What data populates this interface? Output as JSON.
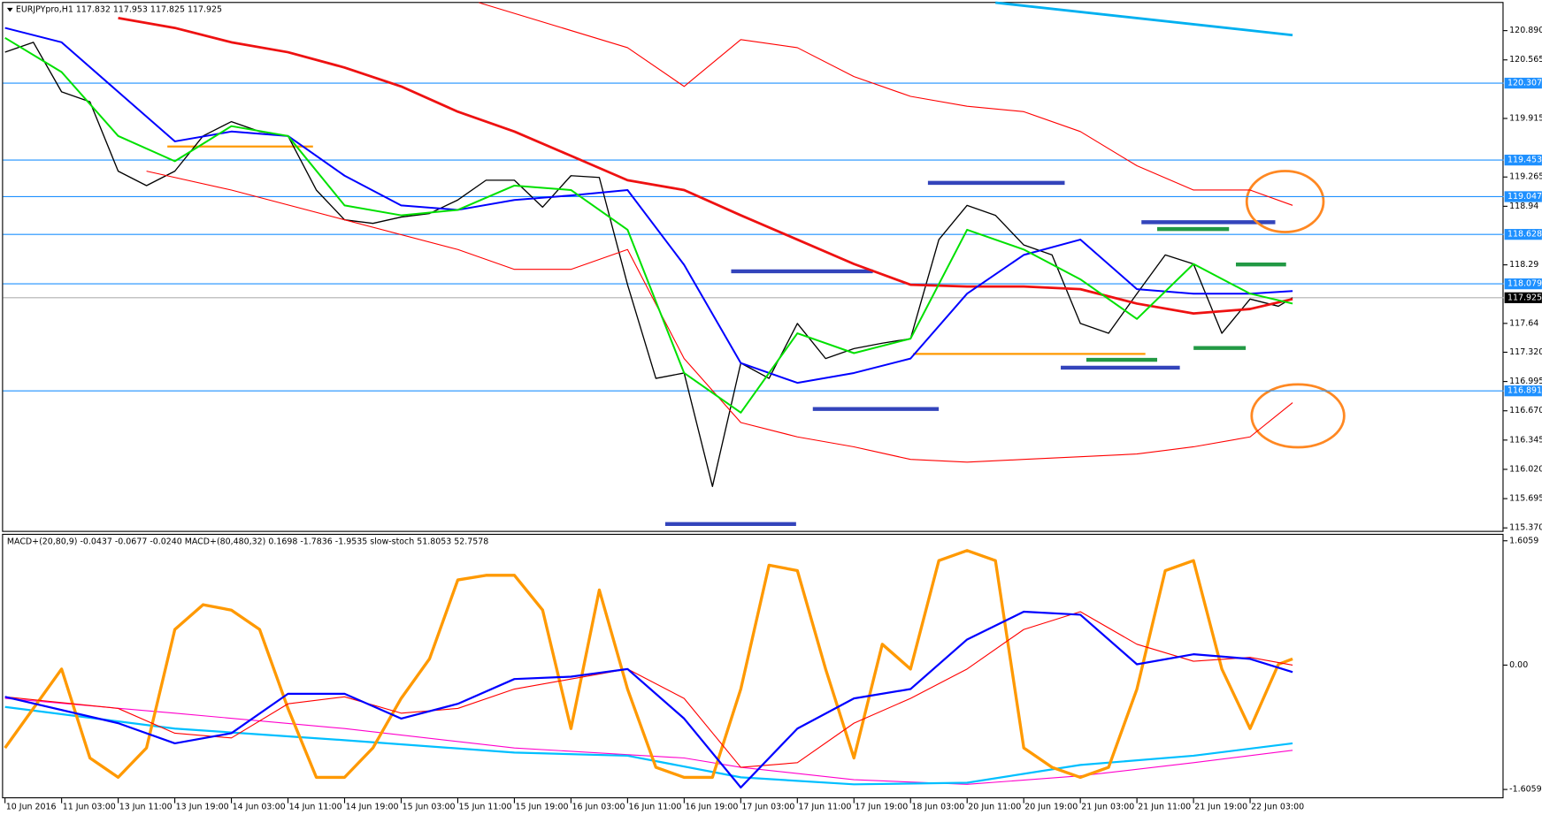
{
  "chart_data": [
    {
      "type": "line",
      "header": "EURJPYpro,H1 117.832 117.953 117.825 117.925",
      "ylim": [
        115.337,
        121.197
      ],
      "yticks": [
        {
          "value": 120.89,
          "label": "120.890"
        },
        120.565,
        119.915,
        119.265,
        118.94,
        118.29,
        117.64,
        {
          "value": 117.32,
          "label": "117.320"
        },
        116.995,
        {
          "value": 116.67,
          "label": "116.670"
        },
        116.345,
        {
          "value": 116.02,
          "label": "116.020"
        },
        115.695,
        {
          "value": 115.37,
          "label": "115.370"
        }
      ],
      "xticks": [
        {
          "value": 0,
          "label": "10 Jun 2016"
        },
        {
          "value": 8,
          "label": "11 Jun 03:00"
        },
        {
          "value": 16,
          "label": "13 Jun 11:00"
        },
        {
          "value": 24,
          "label": "13 Jun 19:00"
        },
        {
          "value": 32,
          "label": "14 Jun 03:00"
        },
        {
          "value": 40,
          "label": "14 Jun 11:00"
        },
        {
          "value": 48,
          "label": "14 Jun 19:00"
        },
        {
          "value": 56,
          "label": "15 Jun 03:00"
        },
        {
          "value": 64,
          "label": "15 Jun 11:00"
        },
        {
          "value": 72,
          "label": "15 Jun 19:00"
        },
        {
          "value": 80,
          "label": "16 Jun 03:00"
        },
        {
          "value": 88,
          "label": "16 Jun 11:00"
        },
        {
          "value": 96,
          "label": "16 Jun 19:00"
        },
        {
          "value": 104,
          "label": "17 Jun 03:00"
        },
        {
          "value": 112,
          "label": "17 Jun 11:00"
        },
        {
          "value": 120,
          "label": "17 Jun 19:00"
        },
        {
          "value": 128,
          "label": "18 Jun 03:00"
        },
        {
          "value": 136,
          "label": "20 Jun 11:00"
        },
        {
          "value": 144,
          "label": "20 Jun 19:00"
        },
        {
          "value": 152,
          "label": "21 Jun 03:00"
        },
        {
          "value": 160,
          "label": "21 Jun 11:00"
        },
        {
          "value": 168,
          "label": "21 Jun 19:00"
        },
        {
          "value": 176,
          "label": "22 Jun 03:00"
        }
      ],
      "hlines": [
        120.307,
        119.453,
        119.047,
        118.628,
        118.079,
        116.891
      ],
      "hline_color": "#1e90ff",
      "last_price": 117.925,
      "series": [
        {
          "color": "#000000",
          "width": 1.2,
          "x": [
            0,
            4,
            8,
            12,
            16,
            20,
            24,
            28,
            32,
            36,
            40,
            44,
            48,
            52,
            56,
            60,
            64,
            68,
            72,
            76,
            80,
            84,
            88,
            92,
            96,
            100,
            104,
            108,
            112,
            116,
            120,
            124,
            128,
            132,
            136,
            140,
            144,
            148,
            152,
            156,
            160,
            164,
            168,
            172,
            176,
            180,
            182
          ],
          "values": [
            120.65,
            120.76,
            120.21,
            120.1,
            119.33,
            119.17,
            119.33,
            119.72,
            119.88,
            119.77,
            119.72,
            119.12,
            118.79,
            118.75,
            118.82,
            118.86,
            119.01,
            119.23,
            119.23,
            118.93,
            119.28,
            119.26,
            118.07,
            117.03,
            117.09,
            115.83,
            117.2,
            117.03,
            117.64,
            117.25,
            117.36,
            117.42,
            117.47,
            118.57,
            118.95,
            118.84,
            118.51,
            118.4,
            117.64,
            117.53,
            117.97,
            118.4,
            118.3,
            117.53,
            117.91,
            117.83,
            117.925
          ]
        },
        {
          "color": "#ff0000",
          "width": 1,
          "x": [
            67,
            88,
            96,
            104,
            112,
            120,
            128,
            136,
            144,
            152,
            160,
            168,
            176,
            182
          ],
          "values": [
            121.2,
            120.7,
            120.27,
            120.79,
            120.7,
            120.38,
            120.16,
            120.05,
            119.99,
            119.77,
            119.39,
            119.12,
            119.12,
            118.95
          ]
        },
        {
          "color": "#ff0000",
          "width": 1,
          "x": [
            20,
            32,
            48,
            64,
            72,
            80,
            88,
            96,
            104,
            112,
            120,
            128,
            136,
            144,
            152,
            160,
            168,
            176,
            182
          ],
          "values": [
            119.33,
            119.12,
            118.79,
            118.46,
            118.24,
            118.24,
            118.46,
            117.25,
            116.54,
            116.38,
            116.27,
            116.13,
            116.1,
            116.13,
            116.16,
            116.19,
            116.27,
            116.38,
            116.76
          ]
        },
        {
          "color": "#ee1111",
          "width": 2.5,
          "x": [
            16,
            24,
            32,
            40,
            48,
            56,
            64,
            72,
            80,
            88,
            96,
            104,
            112,
            120,
            128,
            136,
            144,
            152,
            160,
            168,
            176,
            182
          ],
          "values": [
            121.03,
            120.92,
            120.76,
            120.65,
            120.48,
            120.27,
            119.99,
            119.77,
            119.5,
            119.23,
            119.12,
            118.84,
            118.57,
            118.3,
            118.07,
            118.05,
            118.05,
            118.02,
            117.86,
            117.75,
            117.8,
            117.91
          ]
        },
        {
          "color": "#0000ff",
          "width": 1.8,
          "x": [
            0,
            8,
            16,
            24,
            32,
            40,
            48,
            56,
            64,
            72,
            80,
            88,
            96,
            104,
            112,
            120,
            128,
            136,
            144,
            152,
            160,
            168,
            176,
            182
          ],
          "values": [
            120.92,
            120.76,
            120.21,
            119.66,
            119.77,
            119.72,
            119.28,
            118.95,
            118.9,
            119.01,
            119.06,
            119.12,
            118.29,
            117.2,
            116.98,
            117.09,
            117.25,
            117.97,
            118.4,
            118.57,
            118.02,
            117.97,
            117.97,
            118.0
          ]
        },
        {
          "color": "#00e000",
          "width": 1.8,
          "x": [
            0,
            8,
            16,
            24,
            32,
            40,
            48,
            56,
            64,
            72,
            80,
            88,
            96,
            104,
            112,
            120,
            128,
            136,
            144,
            152,
            160,
            168,
            176,
            182
          ],
          "values": [
            120.81,
            120.43,
            119.72,
            119.44,
            119.83,
            119.72,
            118.95,
            118.84,
            118.9,
            119.17,
            119.12,
            118.68,
            117.09,
            116.65,
            117.53,
            117.31,
            117.47,
            118.68,
            118.46,
            118.13,
            117.69,
            118.3,
            117.97,
            117.86
          ]
        },
        {
          "color": "#00b0f0",
          "width": 2.5,
          "x": [
            140,
            182
          ],
          "values": [
            121.2,
            120.84
          ]
        }
      ]
    },
    {
      "type": "line",
      "header": "MACD+(20,80,9) -0.0437 -0.0677 -0.0240  MACD+(80,480,32) 0.1698 -1.7836 -1.9535  slow-stoch 51.8053 52.7578",
      "ylim": [
        -1.72,
        1.67
      ],
      "yticks": [
        1.6059,
        {
          "value": 0,
          "label": "0.00"
        },
        -1.6059
      ],
      "series": [
        {
          "color": "#ff00cc",
          "width": 1,
          "x": [
            0,
            24,
            48,
            72,
            96,
            104,
            120,
            136,
            152,
            168,
            182
          ],
          "values": [
            -0.43,
            -0.62,
            -0.82,
            -1.07,
            -1.2,
            -1.32,
            -1.48,
            -1.54,
            -1.43,
            -1.26,
            -1.1
          ]
        },
        {
          "color": "#00bfff",
          "width": 2,
          "x": [
            0,
            24,
            48,
            72,
            88,
            104,
            120,
            136,
            152,
            168,
            182
          ],
          "values": [
            -0.54,
            -0.82,
            -0.97,
            -1.13,
            -1.17,
            -1.45,
            -1.54,
            -1.52,
            -1.29,
            -1.17,
            -1.01
          ]
        },
        {
          "color": "#ff9900",
          "width": 3,
          "x": [
            0,
            8,
            12,
            16,
            20,
            24,
            28,
            32,
            36,
            40,
            44,
            48,
            52,
            56,
            60,
            64,
            68,
            72,
            76,
            80,
            84,
            88,
            92,
            96,
            100,
            104,
            108,
            112,
            116,
            120,
            124,
            128,
            132,
            136,
            140,
            144,
            148,
            152,
            156,
            160,
            164,
            168,
            172,
            176,
            180,
            182
          ],
          "values": [
            -1.07,
            -0.05,
            -1.2,
            -1.45,
            -1.07,
            0.46,
            0.78,
            0.71,
            0.46,
            -0.56,
            -1.45,
            -1.45,
            -1.07,
            -0.43,
            0.08,
            1.1,
            1.16,
            1.16,
            0.71,
            -0.82,
            0.97,
            -0.31,
            -1.32,
            -1.45,
            -1.45,
            -0.31,
            1.29,
            1.22,
            -0.05,
            -1.2,
            0.27,
            -0.05,
            1.35,
            1.48,
            1.35,
            -1.07,
            -1.32,
            -1.45,
            -1.32,
            -0.31,
            1.22,
            1.35,
            -0.05,
            -0.82,
            0.01,
            0.08
          ]
        },
        {
          "color": "#ff0000",
          "width": 1,
          "x": [
            0,
            16,
            24,
            32,
            40,
            48,
            56,
            64,
            72,
            80,
            88,
            96,
            104,
            112,
            120,
            128,
            136,
            144,
            152,
            160,
            168,
            176,
            182
          ],
          "values": [
            -0.41,
            -0.56,
            -0.88,
            -0.94,
            -0.5,
            -0.41,
            -0.62,
            -0.56,
            -0.31,
            -0.18,
            -0.05,
            -0.43,
            -1.32,
            -1.26,
            -0.75,
            -0.43,
            -0.05,
            0.46,
            0.69,
            0.27,
            0.05,
            0.1,
            0
          ]
        },
        {
          "color": "#0000ff",
          "width": 2,
          "x": [
            0,
            16,
            24,
            32,
            40,
            48,
            56,
            64,
            72,
            80,
            88,
            96,
            104,
            112,
            120,
            128,
            136,
            144,
            152,
            160,
            168,
            176,
            182
          ],
          "values": [
            -0.41,
            -0.75,
            -1.01,
            -0.88,
            -0.37,
            -0.37,
            -0.69,
            -0.5,
            -0.18,
            -0.15,
            -0.05,
            -0.69,
            -1.58,
            -0.82,
            -0.43,
            -0.31,
            0.33,
            0.69,
            0.65,
            0.01,
            0.14,
            0.08,
            -0.09
          ]
        }
      ]
    }
  ]
}
